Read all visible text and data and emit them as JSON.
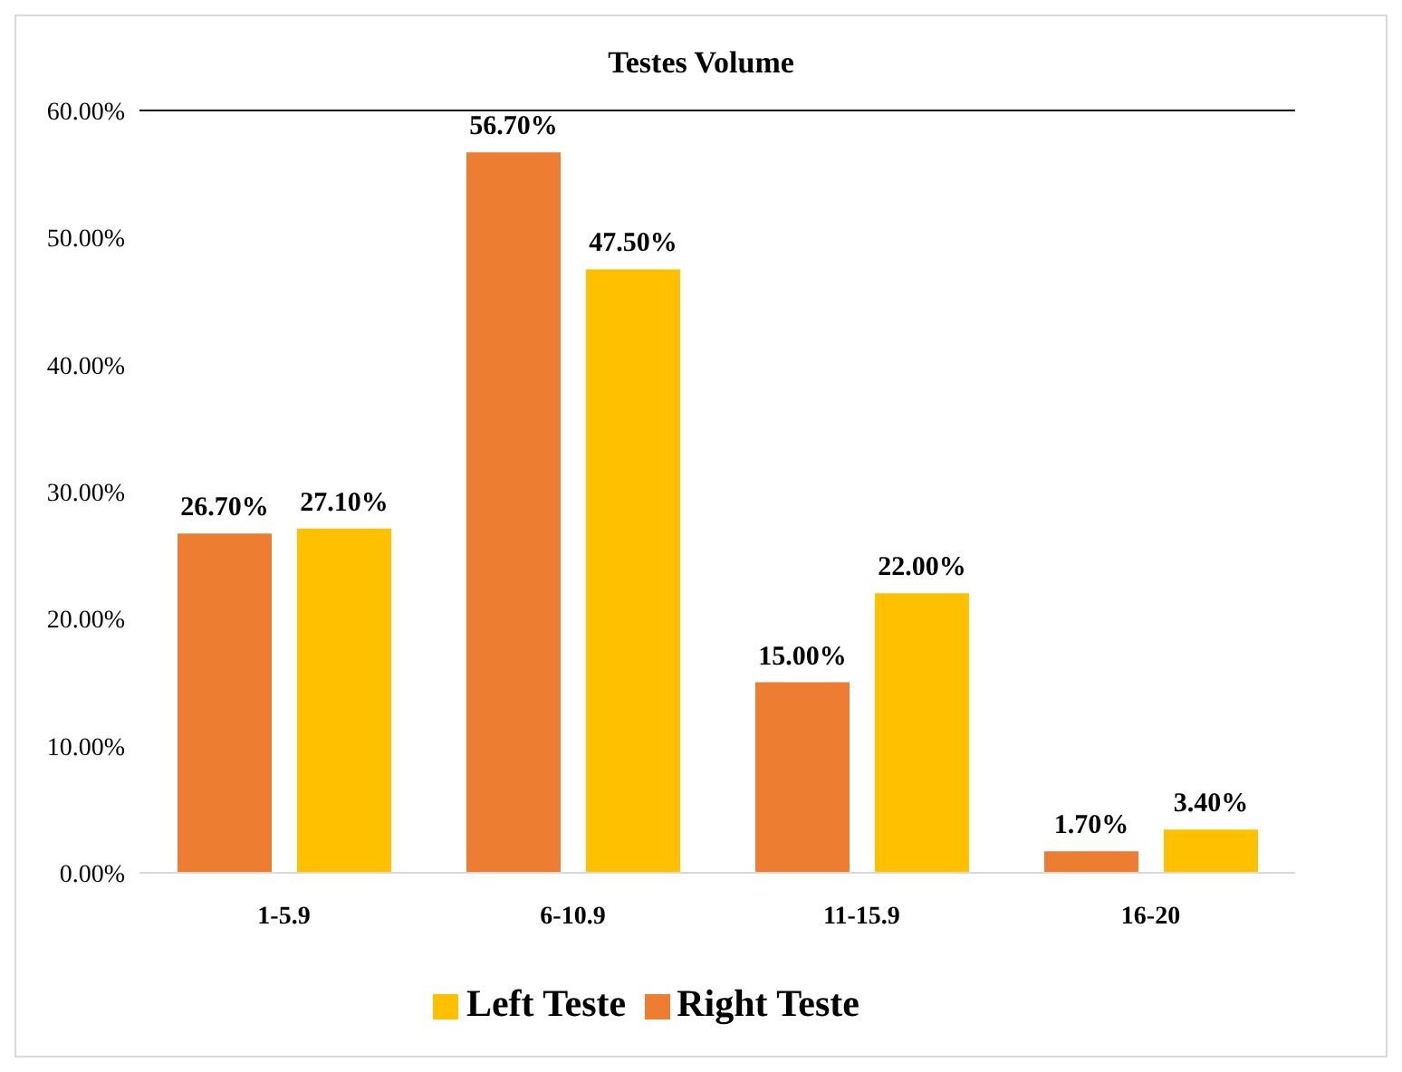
{
  "chart_data": {
    "type": "bar",
    "title": "Testes Volume",
    "categories": [
      "1-5.9",
      "6-10.9",
      "11-15.9",
      "16-20"
    ],
    "series": [
      {
        "name": "Right Teste",
        "color": "#ed7d31",
        "values": [
          26.7,
          56.7,
          15.0,
          1.7
        ],
        "value_labels": [
          "26.70%",
          "56.70%",
          "15.00%",
          "1.70%"
        ]
      },
      {
        "name": "Left Teste",
        "color": "#ffc000",
        "values": [
          27.1,
          47.5,
          22.0,
          3.4
        ],
        "value_labels": [
          "27.10%",
          "47.50%",
          "22.00%",
          "3.40%"
        ]
      }
    ],
    "ylim": [
      0,
      60
    ],
    "yticks": [
      {
        "value": 0,
        "label": "0.00%"
      },
      {
        "value": 10,
        "label": "10.00%"
      },
      {
        "value": 20,
        "label": "20.00%"
      },
      {
        "value": 30,
        "label": "30.00%"
      },
      {
        "value": 40,
        "label": "40.00%"
      },
      {
        "value": 50,
        "label": "50.00%"
      },
      {
        "value": 60,
        "label": "60.00%"
      }
    ],
    "ref_lines": [
      {
        "axis": "y",
        "value": 60,
        "color": "#000000"
      }
    ],
    "grid": false,
    "legend": "bottom"
  }
}
